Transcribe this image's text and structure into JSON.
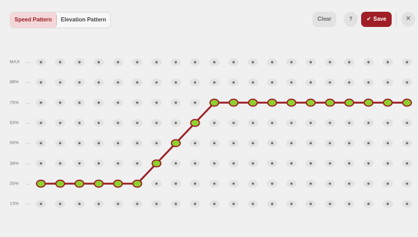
{
  "toolbar": {
    "tabs": [
      {
        "label": "Speed Pattern",
        "active": true
      },
      {
        "label": "Elevation Pattern",
        "active": false
      }
    ],
    "clear_label": "Clear",
    "help_label": "?",
    "save_label": "Save",
    "save_icon": "check-icon",
    "close_icon": "close-icon"
  },
  "colors": {
    "accent": "#a01f26",
    "tab_active_bg": "#f4d7d8",
    "line": "#9b1c23",
    "point_fill": "#8ed12f",
    "dot_bg": "#e3e3e3",
    "dot_center": "#6f6f6f"
  },
  "chart_data": {
    "type": "line",
    "y_levels": [
      "MAX",
      "88%",
      "75%",
      "63%",
      "50%",
      "38%",
      "25%",
      "13%"
    ],
    "columns": 20,
    "values": [
      "25%",
      "25%",
      "25%",
      "25%",
      "25%",
      "25%",
      "38%",
      "50%",
      "63%",
      "75%",
      "75%",
      "75%",
      "75%",
      "75%",
      "75%",
      "75%",
      "75%",
      "75%",
      "75%",
      "75%"
    ]
  }
}
